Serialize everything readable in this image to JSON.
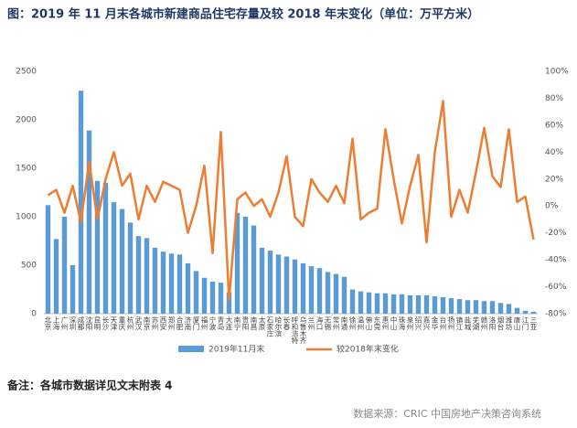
{
  "chart_data": {
    "type": "bar-line",
    "title": "图：2019 年 11 月末各城市新建商品住宅存量及较 2018 年末变化（单位：万平方米）",
    "categories": [
      "北京",
      "上海",
      "广州",
      "深圳",
      "成都",
      "沈阳",
      "昆明",
      "长沙",
      "天津",
      "重庆",
      "杭州",
      "武汉",
      "南京",
      "苏州",
      "西安",
      "郑州",
      "合肥",
      "济南",
      "厦门",
      "福州",
      "宁波",
      "青岛",
      "大连",
      "南宁",
      "贵阳",
      "南昌",
      "太原",
      "石家庄",
      "哈尔滨",
      "长春",
      "呼和浩特",
      "乌鲁木齐",
      "兰州",
      "海口",
      "无锡",
      "常州",
      "南通",
      "徐州",
      "温州",
      "佛山",
      "东莞",
      "惠州",
      "中山",
      "珠海",
      "泉州",
      "绍兴",
      "嘉兴",
      "金华",
      "台州",
      "扬州",
      "镇江",
      "盐城",
      "芜湖",
      "赣州",
      "洛阳",
      "烟台",
      "潍坊",
      "唐山",
      "江门",
      "三亚"
    ],
    "series": [
      {
        "name": "2019年11月末",
        "color": "#5b9bd5",
        "axis": "y",
        "values": [
          1120,
          770,
          1000,
          500,
          2300,
          1890,
          1370,
          1350,
          1150,
          1080,
          940,
          800,
          780,
          680,
          640,
          620,
          610,
          520,
          440,
          370,
          330,
          320,
          220,
          1040,
          1000,
          910,
          680,
          650,
          610,
          590,
          560,
          520,
          490,
          470,
          430,
          410,
          380,
          250,
          230,
          220,
          210,
          210,
          200,
          200,
          190,
          190,
          190,
          180,
          170,
          160,
          150,
          140,
          140,
          130,
          130,
          110,
          100,
          60,
          30,
          20
        ]
      },
      {
        "name": "较2018年末变化",
        "color": "#ed7d31",
        "axis": "y2",
        "values": [
          8,
          12,
          -5,
          15,
          -12,
          33,
          -10,
          20,
          40,
          15,
          24,
          -10,
          15,
          3,
          18,
          15,
          12,
          -20,
          0,
          30,
          -35,
          55,
          -70,
          5,
          10,
          0,
          5,
          -8,
          10,
          37,
          -8,
          -15,
          20,
          10,
          3,
          15,
          2,
          50,
          -10,
          -5,
          -2,
          57,
          20,
          -13,
          15,
          38,
          -27,
          40,
          78,
          -8,
          12,
          -5,
          25,
          58,
          22,
          14,
          57,
          3,
          7,
          -25
        ]
      }
    ],
    "ylim": [
      0,
      2500
    ],
    "yticks": [
      0,
      500,
      1000,
      1500,
      2000,
      2500
    ],
    "y2lim": [
      -80,
      100
    ],
    "y2ticks": [
      {
        "value": -80,
        "label": "-80%"
      },
      {
        "value": -60,
        "label": "-60%"
      },
      {
        "value": -40,
        "label": "-40%"
      },
      {
        "value": -20,
        "label": "-20%"
      },
      {
        "value": 0,
        "label": "0%"
      },
      {
        "value": 20,
        "label": "20%"
      },
      {
        "value": 40,
        "label": "40%"
      },
      {
        "value": 60,
        "label": "60%"
      },
      {
        "value": 80,
        "label": "80%"
      },
      {
        "value": 100,
        "label": "100%"
      }
    ],
    "note": "备注：各城市数据详见文末附表 4",
    "source": "数据来源：CRIC 中国房地产决策咨询系统"
  }
}
